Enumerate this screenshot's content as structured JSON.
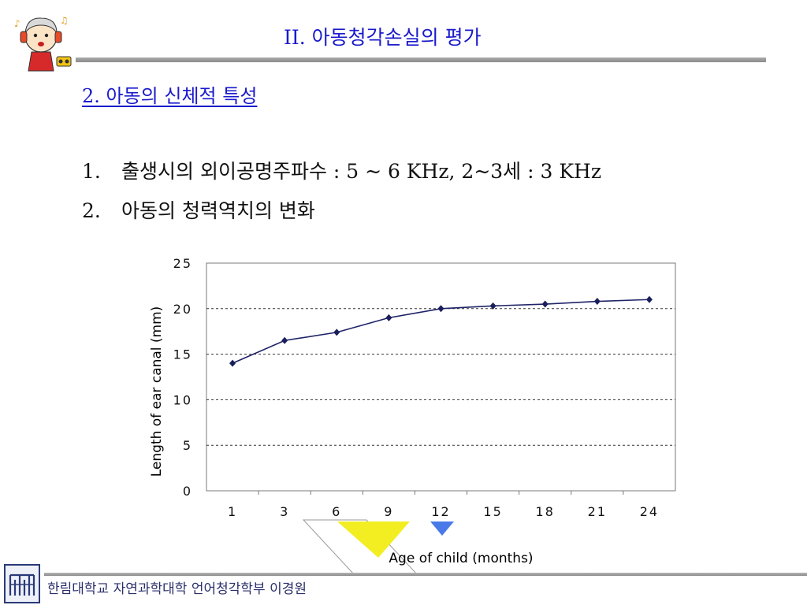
{
  "slide": {
    "title": "II. 아동청각손실의 평가",
    "section_heading": "2. 아동의 신체적 특성",
    "items": [
      {
        "number": "1.",
        "text": "출생시의 외이공명주파수 : 5 ~ 6 KHz, 2~3세 : 3 KHz"
      },
      {
        "number": "2.",
        "text": "아동의 청력역치의 변화"
      }
    ],
    "footer": "한림대학교 자연과학대학 언어청각학부 이경원"
  },
  "colors": {
    "title": "#1a1acc",
    "line": "#1f2366",
    "marker": "#1a1f5c",
    "grid": "#333333",
    "yellow_accent": "#f2ee22",
    "blue_accent": "#4a7ae8"
  },
  "icons": {
    "mascot": "cartoon-child-with-headphones-icon",
    "footer_logo": "university-seal-icon"
  },
  "chart_data": {
    "type": "line",
    "categories": [
      "1",
      "3",
      "6",
      "9",
      "12",
      "15",
      "18",
      "21",
      "24"
    ],
    "series": [
      {
        "values": [
          14,
          16.5,
          17.4,
          19,
          20,
          20.3,
          20.5,
          20.8,
          21
        ]
      }
    ],
    "xlabel": "Age of child (months)",
    "ylabel": "Length of ear canal (mm)",
    "ylim": [
      0,
      25
    ],
    "yticks": [
      "0",
      "5",
      "10",
      "15",
      "20",
      "25"
    ],
    "grid": "horizontal dashed",
    "legend": "none"
  }
}
